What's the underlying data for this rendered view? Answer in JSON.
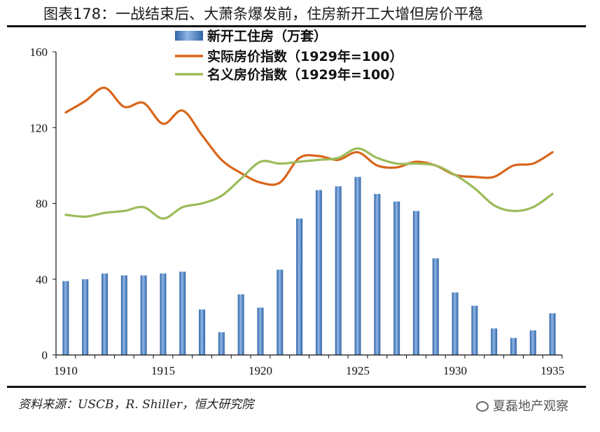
{
  "title": "图表178：一战结束后、大萧条爆发前，住房新开工大增但房价平稳",
  "source": "资料来源：USCB，R. Shiller，恒大研究院",
  "watermark": "夏磊地产观察",
  "chart_data": {
    "type": "bar+line",
    "title": "图表178：一战结束后、大萧条爆发前，住房新开工大增但房价平稳",
    "ylim": [
      0,
      160
    ],
    "yticks": [
      0,
      40,
      80,
      120,
      160
    ],
    "xticks": [
      "1910",
      "1915",
      "1920",
      "1925",
      "1930",
      "1935"
    ],
    "categories": [
      "1910",
      "1911",
      "1912",
      "1913",
      "1914",
      "1915",
      "1916",
      "1917",
      "1918",
      "1919",
      "1920",
      "1921",
      "1922",
      "1923",
      "1924",
      "1925",
      "1926",
      "1927",
      "1928",
      "1929",
      "1930",
      "1931",
      "1932",
      "1933",
      "1934",
      "1935"
    ],
    "grid": false,
    "legend_position": "top",
    "series": [
      {
        "name": "新开工住房（万套）",
        "kind": "bar",
        "color": "#4a7fc1",
        "values": [
          39,
          40,
          43,
          42,
          42,
          43,
          44,
          24,
          12,
          32,
          25,
          45,
          72,
          87,
          89,
          94,
          85,
          81,
          76,
          51,
          33,
          26,
          14,
          9,
          13,
          22
        ]
      },
      {
        "name": "实际房价指数（1929年=100）",
        "kind": "line",
        "color": "#d9651a",
        "values": [
          128,
          134,
          141,
          131,
          133,
          122,
          129,
          116,
          103,
          96,
          91,
          91,
          104,
          105,
          103,
          107,
          100,
          99,
          102,
          100,
          95,
          94,
          94,
          100,
          101,
          107
        ]
      },
      {
        "name": "名义房价指数（1929年=100）",
        "kind": "line",
        "color": "#9bbb59",
        "values": [
          74,
          73,
          75,
          76,
          78,
          72,
          78,
          80,
          84,
          93,
          102,
          101,
          102,
          103,
          104,
          109,
          104,
          101,
          101,
          100,
          95,
          88,
          79,
          76,
          78,
          85
        ]
      }
    ]
  }
}
